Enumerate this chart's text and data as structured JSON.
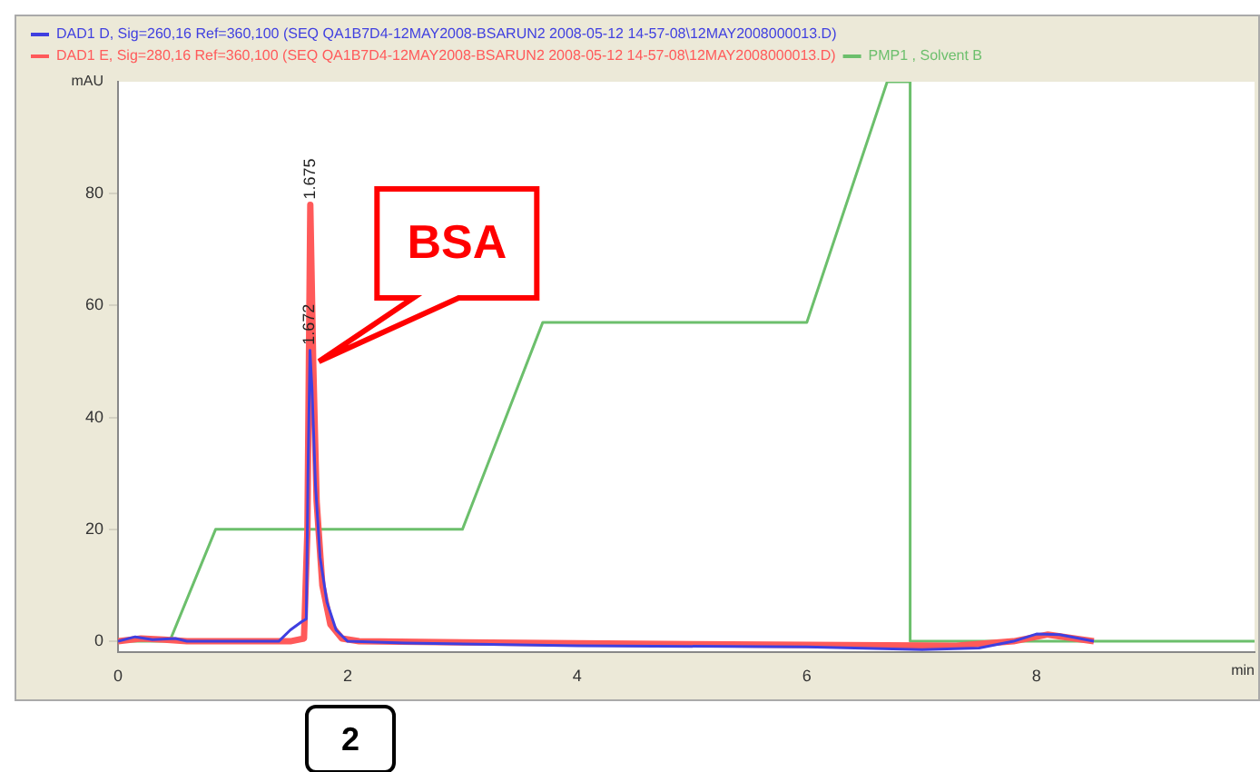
{
  "chart_data": {
    "type": "line",
    "xlabel": "min",
    "ylabel": "mAU",
    "xlim": [
      0,
      9.9
    ],
    "xticks": [
      0,
      2,
      4,
      6,
      8
    ],
    "ylim": [
      -2,
      100
    ],
    "yticks": [
      0,
      20,
      40,
      60,
      80
    ],
    "grid": false,
    "legend": "top",
    "marker": "none",
    "line_style": "solid",
    "series": [
      {
        "name": "DAD1 D, Sig=260,16 Ref=360,100 (SEQ QA1B7D4-12MAY2008-BSARUN2 2008-05-12 14-57-08\\12MAY2008000013.D)",
        "color": "#3f3fe0",
        "x": [
          0,
          0.15,
          0.3,
          0.5,
          0.6,
          1.4,
          1.5,
          1.6,
          1.64,
          1.655,
          1.672,
          1.69,
          1.72,
          1.76,
          1.82,
          1.9,
          2.0,
          2.5,
          4,
          6,
          7.0,
          7.5,
          7.8,
          8.0,
          8.2,
          8.5
        ],
        "values": [
          0,
          0.8,
          0.3,
          0.5,
          0,
          0,
          2,
          3.5,
          4,
          30,
          52,
          45,
          28,
          15,
          7,
          2,
          0,
          -0.3,
          -0.8,
          -1,
          -1.5,
          -1.2,
          0,
          1.3,
          1.2,
          0
        ]
      },
      {
        "name": "DAD1 E, Sig=280,16 Ref=360,100 (SEQ QA1B7D4-12MAY2008-BSARUN2 2008-05-12 14-57-08\\12MAY2008000013.D)",
        "color": "#ff5a5a",
        "x": [
          0,
          0.2,
          0.4,
          0.6,
          1.5,
          1.62,
          1.65,
          1.675,
          1.7,
          1.73,
          1.78,
          1.85,
          1.95,
          2.1,
          3,
          5,
          7.3,
          7.8,
          8.1,
          8.4,
          8.5
        ],
        "values": [
          0,
          0.5,
          0.3,
          0,
          0,
          0.5,
          20,
          78,
          50,
          25,
          10,
          3,
          0.5,
          0,
          -0.2,
          -0.5,
          -0.8,
          0,
          1.2,
          0.3,
          0
        ]
      },
      {
        "name": "PMP1 , Solvent B",
        "color": "#6cbf6c",
        "x": [
          0,
          0.45,
          0.85,
          3.0,
          3.7,
          6.0,
          6.7,
          6.9,
          6.9,
          9.9
        ],
        "values": [
          0,
          0,
          20,
          20,
          57,
          57,
          100,
          100,
          0,
          0
        ]
      }
    ],
    "annotations": [
      {
        "text": "1.675",
        "x": 1.675,
        "y": 78
      },
      {
        "text": "1.672",
        "x": 1.672,
        "y": 52
      },
      {
        "text": "BSA",
        "x": 1.75,
        "y": 50
      },
      "2"
    ]
  }
}
